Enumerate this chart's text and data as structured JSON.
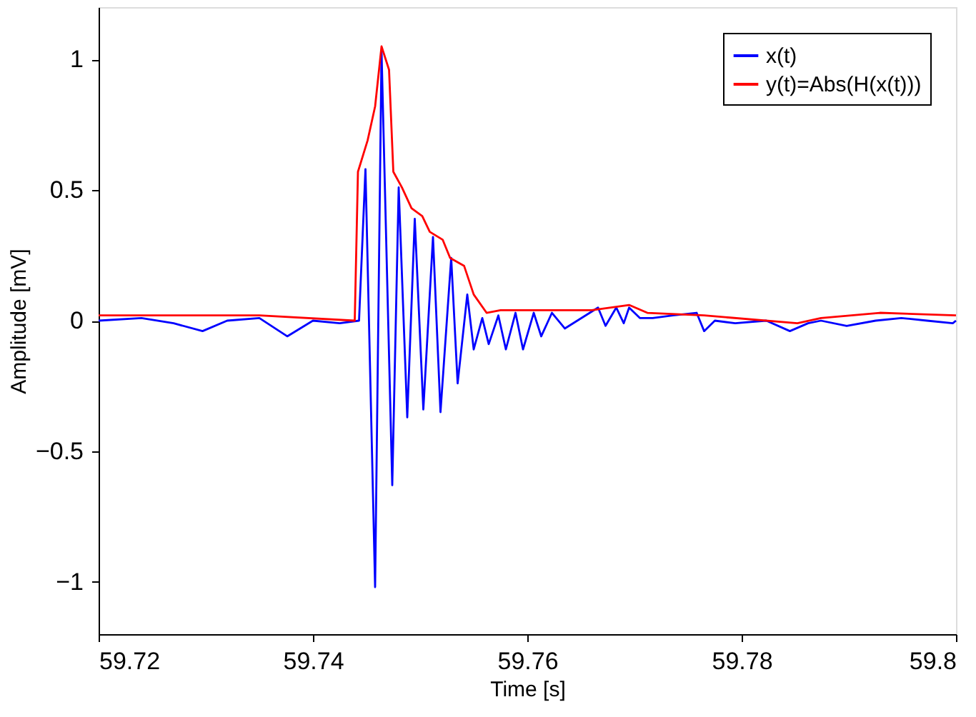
{
  "chart_data": {
    "type": "line",
    "xlabel": "Time [s]",
    "ylabel": "Amplitude [mV]",
    "xlim": [
      59.72,
      59.8
    ],
    "xticks": [
      59.72,
      59.74,
      59.76,
      59.78,
      59.8
    ],
    "ylim": [
      -1.2,
      1.2
    ],
    "yticks": [
      -1,
      -0.5,
      0,
      0.5,
      1
    ],
    "grid": false,
    "legend": "top right",
    "line_style": "solid",
    "marker": "none",
    "series": [
      {
        "name": "x(t)",
        "color": "#0000ff",
        "x": [
          59.72,
          59.724,
          59.727,
          59.7297,
          59.732,
          59.735,
          59.7376,
          59.74,
          59.7425,
          59.7443,
          59.7449,
          59.7458,
          59.7464,
          59.7474,
          59.748,
          59.7488,
          59.7495,
          59.7503,
          59.7512,
          59.7519,
          59.7529,
          59.7535,
          59.7544,
          59.755,
          59.7558,
          59.7564,
          59.7573,
          59.758,
          59.7589,
          59.7596,
          59.7606,
          59.7613,
          59.7623,
          59.7635,
          59.7666,
          59.7673,
          59.7683,
          59.769,
          59.7695,
          59.7705,
          59.7717,
          59.7736,
          59.7758,
          59.7765,
          59.7775,
          59.7794,
          59.7823,
          59.7845,
          59.7862,
          59.7874,
          59.7898,
          59.7925,
          59.7949,
          59.7973,
          59.7997,
          59.8
        ],
        "values": [
          0.0,
          0.01,
          -0.01,
          -0.04,
          0.0,
          0.01,
          -0.06,
          0.0,
          -0.01,
          0.0,
          0.58,
          -1.02,
          1.03,
          -0.63,
          0.51,
          -0.37,
          0.39,
          -0.34,
          0.32,
          -0.35,
          0.24,
          -0.24,
          0.1,
          -0.11,
          0.01,
          -0.09,
          0.02,
          -0.11,
          0.03,
          -0.11,
          0.03,
          -0.06,
          0.03,
          -0.03,
          0.05,
          -0.02,
          0.05,
          -0.01,
          0.05,
          0.01,
          0.01,
          0.02,
          0.03,
          -0.04,
          0.0,
          -0.01,
          0.0,
          -0.04,
          -0.01,
          0.0,
          -0.02,
          0.0,
          0.01,
          0.0,
          -0.01,
          0.0
        ]
      },
      {
        "name": "y(t)=Abs(H(x(t)))",
        "color": "#ff0000",
        "x": [
          59.72,
          59.728,
          59.735,
          59.7439,
          59.7442,
          59.7451,
          59.7458,
          59.7464,
          59.7471,
          59.7475,
          59.7483,
          59.7492,
          59.7502,
          59.7509,
          59.7521,
          59.7528,
          59.7541,
          59.755,
          59.7562,
          59.7575,
          59.762,
          59.766,
          59.7695,
          59.7712,
          59.7765,
          59.7852,
          59.7874,
          59.7929,
          59.8
        ],
        "values": [
          0.02,
          0.02,
          0.02,
          0.0,
          0.57,
          0.69,
          0.82,
          1.05,
          0.96,
          0.57,
          0.51,
          0.43,
          0.4,
          0.34,
          0.31,
          0.24,
          0.21,
          0.1,
          0.03,
          0.04,
          0.04,
          0.04,
          0.06,
          0.03,
          0.02,
          -0.01,
          0.01,
          0.03,
          0.02
        ]
      }
    ]
  }
}
